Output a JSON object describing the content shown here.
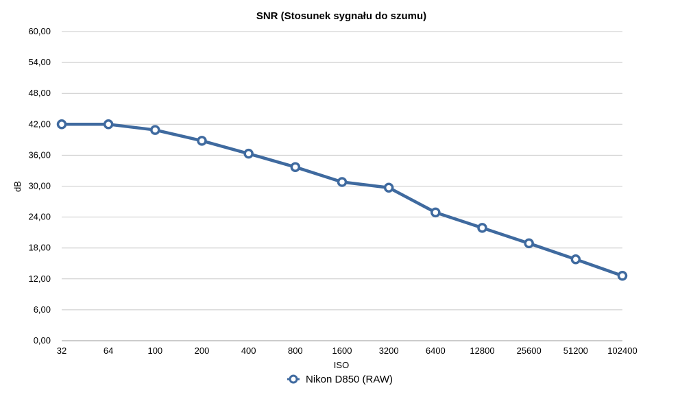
{
  "chart_data": {
    "type": "line",
    "title": "SNR (Stosunek sygnału do szumu)",
    "xlabel": "ISO",
    "ylabel": "dB",
    "categories": [
      "32",
      "64",
      "100",
      "200",
      "400",
      "800",
      "1600",
      "3200",
      "6400",
      "12800",
      "25600",
      "51200",
      "102400"
    ],
    "series": [
      {
        "name": "Nikon D850 (RAW)",
        "values": [
          42.0,
          42.0,
          40.9,
          38.8,
          36.3,
          33.7,
          30.8,
          29.7,
          24.9,
          21.9,
          18.9,
          15.8,
          12.6
        ],
        "color": "#3f6a9f"
      }
    ],
    "ylim": [
      0,
      60
    ],
    "yticks": [
      "0,00",
      "6,00",
      "12,00",
      "18,00",
      "24,00",
      "30,00",
      "36,00",
      "42,00",
      "48,00",
      "54,00",
      "60,00"
    ],
    "grid": true,
    "legend_position": "bottom-center"
  }
}
